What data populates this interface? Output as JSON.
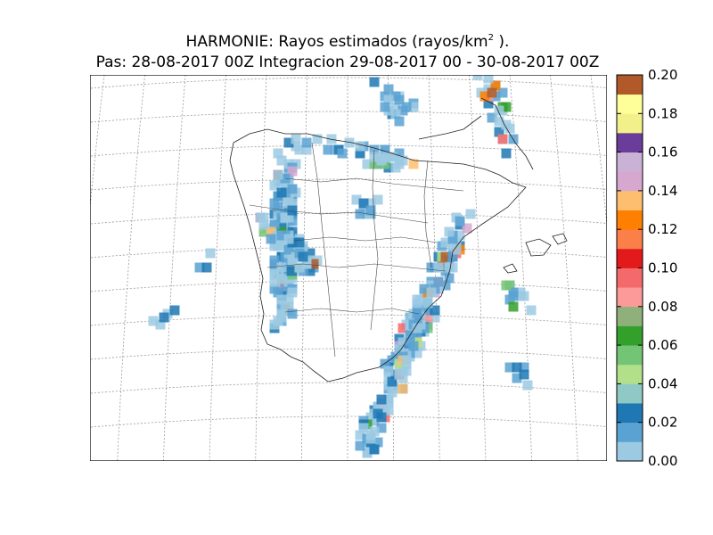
{
  "title": {
    "line1_prefix": "HARMONIE: Rayos estimados  (rayos/km",
    "line1_sup": "2",
    "line1_suffix": " ).",
    "line2": "Pas: 28-08-2017 00Z Integracion 29-08-2017 00 - 30-08-2017 00Z"
  },
  "colorbar": {
    "unit": "rayos/km2",
    "ticks": [
      "0.00",
      "0.02",
      "0.04",
      "0.06",
      "0.08",
      "0.10",
      "0.12",
      "0.14",
      "0.16",
      "0.18",
      "0.20"
    ],
    "min": 0,
    "max": 0.2,
    "bands": [
      {
        "from": 0.0,
        "to": 0.01,
        "color": "#9ccae3"
      },
      {
        "from": 0.01,
        "to": 0.02,
        "color": "#5aa2d2"
      },
      {
        "from": 0.02,
        "to": 0.03,
        "color": "#1f78b4"
      },
      {
        "from": 0.03,
        "to": 0.04,
        "color": "#8fc9c6"
      },
      {
        "from": 0.04,
        "to": 0.05,
        "color": "#b2df8a"
      },
      {
        "from": 0.05,
        "to": 0.06,
        "color": "#74c476"
      },
      {
        "from": 0.06,
        "to": 0.07,
        "color": "#33a02c"
      },
      {
        "from": 0.07,
        "to": 0.08,
        "color": "#8fb07a"
      },
      {
        "from": 0.08,
        "to": 0.09,
        "color": "#fb9a99"
      },
      {
        "from": 0.09,
        "to": 0.1,
        "color": "#f46a6a"
      },
      {
        "from": 0.1,
        "to": 0.11,
        "color": "#e31a1c"
      },
      {
        "from": 0.11,
        "to": 0.12,
        "color": "#fa7f49"
      },
      {
        "from": 0.12,
        "to": 0.13,
        "color": "#ff7f00"
      },
      {
        "from": 0.13,
        "to": 0.14,
        "color": "#fdbf6f"
      },
      {
        "from": 0.14,
        "to": 0.15,
        "color": "#d6a8d0"
      },
      {
        "from": 0.15,
        "to": 0.16,
        "color": "#cab2d6"
      },
      {
        "from": 0.16,
        "to": 0.17,
        "color": "#6a3d9a"
      },
      {
        "from": 0.17,
        "to": 0.18,
        "color": "#f2f08a"
      },
      {
        "from": 0.18,
        "to": 0.19,
        "color": "#ffff99"
      },
      {
        "from": 0.19,
        "to": 0.2,
        "color": "#b15928"
      }
    ]
  },
  "map_layers": [
    "lat-lon graticule",
    "coastlines",
    "administrative boundaries",
    "lightning density cells"
  ]
}
